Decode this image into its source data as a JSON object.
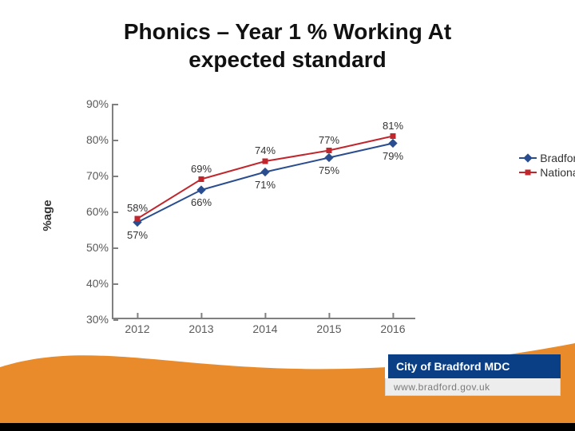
{
  "title_line1": "Phonics – Year 1 % Working At",
  "title_line2": "expected standard",
  "chart": {
    "type": "line",
    "y_axis_label": "%age",
    "ylim": [
      30,
      90
    ],
    "ytick_step": 10,
    "y_ticks": [
      30,
      40,
      50,
      60,
      70,
      80,
      90
    ],
    "y_tick_labels": [
      "30%",
      "40%",
      "50%",
      "60%",
      "70%",
      "80%",
      "90%"
    ],
    "y_tick_fontsize": 14,
    "x_categories": [
      "2012",
      "2013",
      "2014",
      "2015",
      "2016"
    ],
    "x_tick_fontsize": 14,
    "background_color": "#ffffff",
    "axis_color": "#808080",
    "label_fontsize": 13,
    "series": [
      {
        "name": "Bradford",
        "color": "#2a4d8f",
        "marker": "diamond",
        "marker_size": 8,
        "line_width": 2,
        "values": [
          57,
          66,
          71,
          75,
          79
        ],
        "value_labels": [
          "57%",
          "66%",
          "71%",
          "75%",
          "79%"
        ],
        "label_position": "below"
      },
      {
        "name": "National",
        "color": "#c0272d",
        "marker": "square",
        "marker_size": 7,
        "line_width": 2,
        "values": [
          58,
          69,
          74,
          77,
          81
        ],
        "value_labels": [
          "58%",
          "69%",
          "74%",
          "77%",
          "81%"
        ],
        "label_position": "above"
      }
    ],
    "legend_position": "right",
    "legend_fontsize": 14
  },
  "footer": {
    "logo_text": "City of Bradford MDC",
    "url_text": "www.bradford.gov.uk",
    "logo_bg": "#0a3f86",
    "logo_fg": "#ffffff",
    "url_bg": "#ededed",
    "url_fg": "#7a7a7a"
  },
  "wave_color": "#e98b2a",
  "title_fontsize": 28,
  "title_color": "#111111"
}
